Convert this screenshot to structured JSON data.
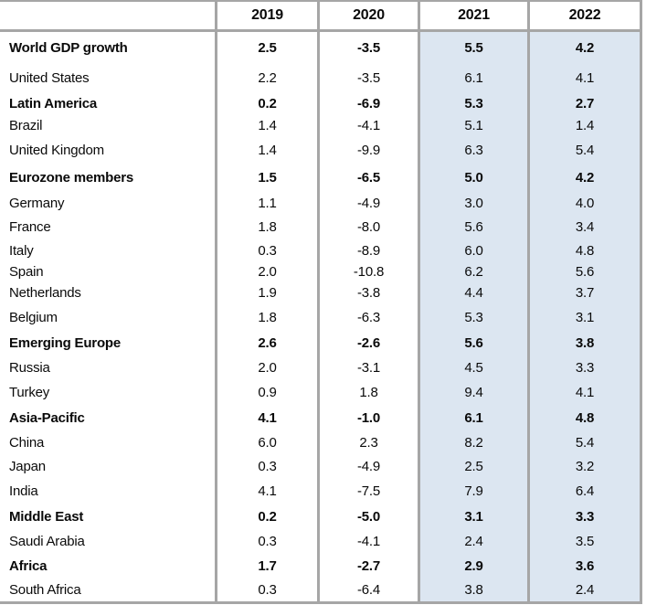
{
  "table": {
    "columns": [
      "2019",
      "2020",
      "2021",
      "2022"
    ],
    "rows": [
      {
        "label": "World GDP growth",
        "bold": true,
        "values": [
          "2.5",
          "-3.5",
          "5.5",
          "4.2"
        ]
      },
      {
        "label": "United States",
        "bold": false,
        "values": [
          "2.2",
          "-3.5",
          "6.1",
          "4.1"
        ]
      },
      {
        "label": "Latin America",
        "bold": true,
        "values": [
          "0.2",
          "-6.9",
          "5.3",
          "2.7"
        ]
      },
      {
        "label": "Brazil",
        "bold": false,
        "values": [
          "1.4",
          "-4.1",
          "5.1",
          "1.4"
        ]
      },
      {
        "label": "United Kingdom",
        "bold": false,
        "values": [
          "1.4",
          "-9.9",
          "6.3",
          "5.4"
        ]
      },
      {
        "label": "Eurozone members",
        "bold": true,
        "values": [
          "1.5",
          "-6.5",
          "5.0",
          "4.2"
        ]
      },
      {
        "label": "Germany",
        "bold": false,
        "values": [
          "1.1",
          "-4.9",
          "3.0",
          "4.0"
        ]
      },
      {
        "label": "France",
        "bold": false,
        "values": [
          "1.8",
          "-8.0",
          "5.6",
          "3.4"
        ]
      },
      {
        "label": "Italy",
        "bold": false,
        "values": [
          "0.3",
          "-8.9",
          "6.0",
          "4.8"
        ]
      },
      {
        "label": "Spain",
        "bold": false,
        "values": [
          "2.0",
          "-10.8",
          "6.2",
          "5.6"
        ]
      },
      {
        "label": "Netherlands",
        "bold": false,
        "values": [
          "1.9",
          "-3.8",
          "4.4",
          "3.7"
        ]
      },
      {
        "label": "Belgium",
        "bold": false,
        "values": [
          "1.8",
          "-6.3",
          "5.3",
          "3.1"
        ]
      },
      {
        "label": "Emerging Europe",
        "bold": true,
        "values": [
          "2.6",
          "-2.6",
          "5.6",
          "3.8"
        ]
      },
      {
        "label": "Russia",
        "bold": false,
        "values": [
          "2.0",
          "-3.1",
          "4.5",
          "3.3"
        ]
      },
      {
        "label": "Turkey",
        "bold": false,
        "values": [
          "0.9",
          "1.8",
          "9.4",
          "4.1"
        ]
      },
      {
        "label": "Asia-Pacific",
        "bold": true,
        "values": [
          "4.1",
          "-1.0",
          "6.1",
          "4.8"
        ]
      },
      {
        "label": "China",
        "bold": false,
        "values": [
          "6.0",
          "2.3",
          "8.2",
          "5.4"
        ]
      },
      {
        "label": "Japan",
        "bold": false,
        "values": [
          "0.3",
          "-4.9",
          "2.5",
          "3.2"
        ]
      },
      {
        "label": "India",
        "bold": false,
        "values": [
          "4.1",
          "-7.5",
          "7.9",
          "6.4"
        ]
      },
      {
        "label": "Middle East",
        "bold": true,
        "values": [
          "0.2",
          "-5.0",
          "3.1",
          "3.3"
        ]
      },
      {
        "label": "Saudi Arabia",
        "bold": false,
        "values": [
          "0.3",
          "-4.1",
          "2.4",
          "3.5"
        ]
      },
      {
        "label": "Africa",
        "bold": true,
        "values": [
          "1.7",
          "-2.7",
          "2.9",
          "3.6"
        ]
      },
      {
        "label": "South Africa",
        "bold": false,
        "values": [
          "0.3",
          "-6.4",
          "3.8",
          "2.4"
        ]
      }
    ],
    "colors": {
      "highlight_bg": "#dce6f1",
      "grid_line": "#a6a6a6",
      "text": "#0a0a0a"
    }
  },
  "chart_data": {
    "type": "table",
    "columns": [
      "2019",
      "2020",
      "2021",
      "2022"
    ],
    "highlighted_columns": [
      "2021",
      "2022"
    ],
    "rows": [
      {
        "label": "World GDP growth",
        "aggregate": true,
        "values": [
          2.5,
          -3.5,
          5.5,
          4.2
        ]
      },
      {
        "label": "United States",
        "aggregate": false,
        "values": [
          2.2,
          -3.5,
          6.1,
          4.1
        ]
      },
      {
        "label": "Latin America",
        "aggregate": true,
        "values": [
          0.2,
          -6.9,
          5.3,
          2.7
        ]
      },
      {
        "label": "Brazil",
        "aggregate": false,
        "values": [
          1.4,
          -4.1,
          5.1,
          1.4
        ]
      },
      {
        "label": "United Kingdom",
        "aggregate": false,
        "values": [
          1.4,
          -9.9,
          6.3,
          5.4
        ]
      },
      {
        "label": "Eurozone members",
        "aggregate": true,
        "values": [
          1.5,
          -6.5,
          5.0,
          4.2
        ]
      },
      {
        "label": "Germany",
        "aggregate": false,
        "values": [
          1.1,
          -4.9,
          3.0,
          4.0
        ]
      },
      {
        "label": "France",
        "aggregate": false,
        "values": [
          1.8,
          -8.0,
          5.6,
          3.4
        ]
      },
      {
        "label": "Italy",
        "aggregate": false,
        "values": [
          0.3,
          -8.9,
          6.0,
          4.8
        ]
      },
      {
        "label": "Spain",
        "aggregate": false,
        "values": [
          2.0,
          -10.8,
          6.2,
          5.6
        ]
      },
      {
        "label": "Netherlands",
        "aggregate": false,
        "values": [
          1.9,
          -3.8,
          4.4,
          3.7
        ]
      },
      {
        "label": "Belgium",
        "aggregate": false,
        "values": [
          1.8,
          -6.3,
          5.3,
          3.1
        ]
      },
      {
        "label": "Emerging Europe",
        "aggregate": true,
        "values": [
          2.6,
          -2.6,
          5.6,
          3.8
        ]
      },
      {
        "label": "Russia",
        "aggregate": false,
        "values": [
          2.0,
          -3.1,
          4.5,
          3.3
        ]
      },
      {
        "label": "Turkey",
        "aggregate": false,
        "values": [
          0.9,
          1.8,
          9.4,
          4.1
        ]
      },
      {
        "label": "Asia-Pacific",
        "aggregate": true,
        "values": [
          4.1,
          -1.0,
          6.1,
          4.8
        ]
      },
      {
        "label": "China",
        "aggregate": false,
        "values": [
          6.0,
          2.3,
          8.2,
          5.4
        ]
      },
      {
        "label": "Japan",
        "aggregate": false,
        "values": [
          0.3,
          -4.9,
          2.5,
          3.2
        ]
      },
      {
        "label": "India",
        "aggregate": false,
        "values": [
          4.1,
          -7.5,
          7.9,
          6.4
        ]
      },
      {
        "label": "Middle East",
        "aggregate": true,
        "values": [
          0.2,
          -5.0,
          3.1,
          3.3
        ]
      },
      {
        "label": "Saudi Arabia",
        "aggregate": false,
        "values": [
          0.3,
          -4.1,
          2.4,
          3.5
        ]
      },
      {
        "label": "Africa",
        "aggregate": true,
        "values": [
          1.7,
          -2.7,
          2.9,
          3.6
        ]
      },
      {
        "label": "South Africa",
        "aggregate": false,
        "values": [
          0.3,
          -6.4,
          3.8,
          2.4
        ]
      }
    ]
  }
}
